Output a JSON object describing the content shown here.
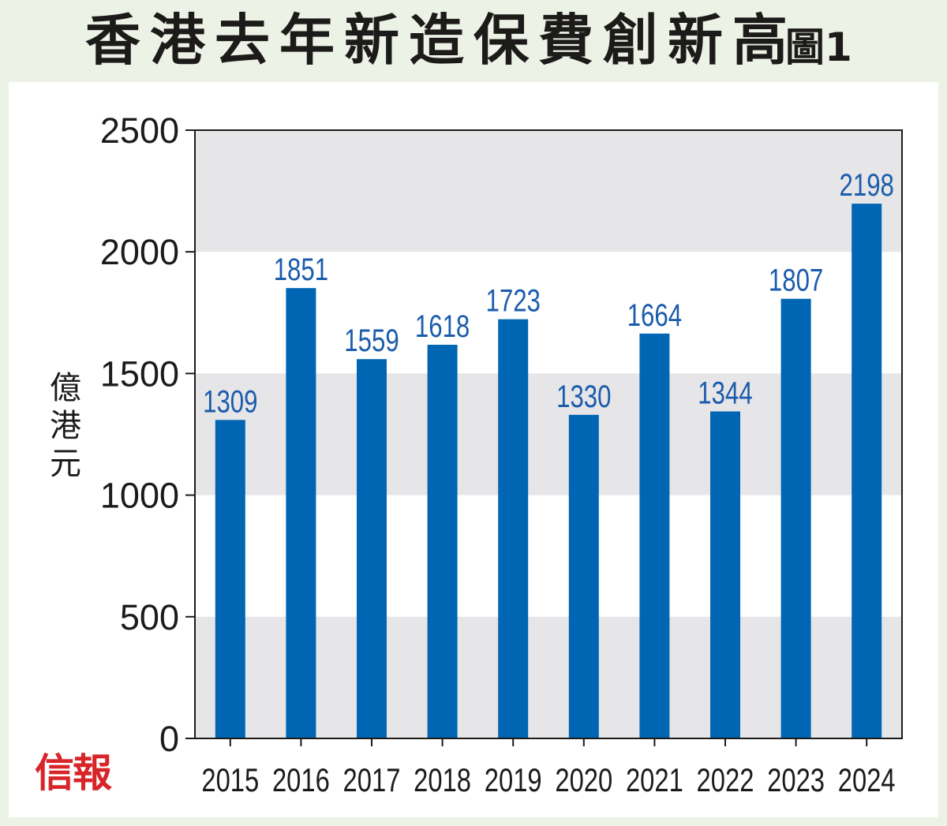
{
  "header": {
    "title": "香港去年新造保費創新高",
    "figure_label": "圖1"
  },
  "logo": {
    "text": "信報",
    "color": "#d8252a"
  },
  "colors": {
    "bar": "#0066b3",
    "value_label": "#1a5cab",
    "band": "#e6e5e8",
    "background": "#edf2e7",
    "axis": "#1d1b1a"
  },
  "chart_data": {
    "type": "bar",
    "title": "香港去年新造保費創新高",
    "xlabel": "",
    "ylabel": "億港元",
    "categories": [
      "2015",
      "2016",
      "2017",
      "2018",
      "2019",
      "2020",
      "2021",
      "2022",
      "2023",
      "2024"
    ],
    "values": [
      1309,
      1851,
      1559,
      1618,
      1723,
      1330,
      1664,
      1344,
      1807,
      2198
    ],
    "ylim": [
      0,
      2500
    ],
    "yticks": [
      0,
      500,
      1000,
      1500,
      2000,
      2500
    ],
    "grid": "alternating horizontal bands",
    "data_labels": true
  }
}
